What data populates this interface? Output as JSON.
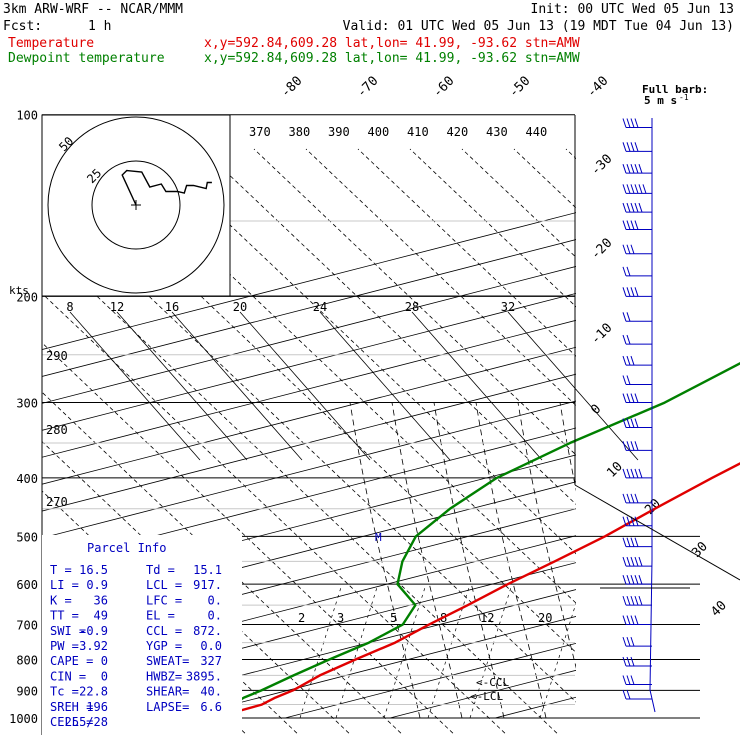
{
  "header": {
    "model": "3km ARW-WRF -- NCAR/MMM",
    "init": "Init: 00 UTC Wed 05 Jun 13",
    "fcst_label": "Fcst:",
    "fcst_value": "1 h",
    "valid": "Valid: 01 UTC Wed 05 Jun 13 (19 MDT Tue 04 Jun 13)",
    "temp_label": "Temperature",
    "dew_label": "Dewpoint temperature",
    "loc_info": "x,y=592.84,609.28   lat,lon= 41.99, -93.62  stn=AMW"
  },
  "colors": {
    "temperature": "#e00000",
    "dewpoint": "#008000",
    "wind": "#0000c0",
    "grid": "#000000"
  },
  "chart_data": {
    "type": "line",
    "pressure_ticks": [
      "100",
      "200",
      "300",
      "400",
      "500",
      "600",
      "700",
      "800",
      "900",
      "1000"
    ],
    "isotherm_labels": [
      "-80",
      "-70",
      "-60",
      "-50",
      "-40",
      "-30",
      "-20",
      "-10",
      "0",
      "10",
      "20",
      "30",
      "40"
    ],
    "theta_labels": [
      "370",
      "380",
      "390",
      "400",
      "410",
      "420",
      "430",
      "440"
    ],
    "theta_left_labels": [
      "290",
      "280",
      "270"
    ],
    "mixing_ratio_labels": [
      "2",
      "3",
      "5",
      "8",
      "12",
      "20"
    ],
    "hodo_labels": [
      "8",
      "12",
      "16",
      "20",
      "24",
      "28",
      "32"
    ],
    "hodo_ring_labels": [
      "25",
      "50"
    ],
    "kts_label": "kts",
    "barb_key": "Full barb:\n5 m s",
    "parcel_markers": [
      "<-CCL",
      "<-LCL"
    ],
    "temperature": {
      "name": "Temperature",
      "points": [
        [
          1000,
          23.0
        ],
        [
          975,
          23.0
        ],
        [
          950,
          22.8
        ],
        [
          925,
          21.5
        ],
        [
          900,
          20.5
        ],
        [
          850,
          17.5
        ],
        [
          800,
          15.0
        ],
        [
          750,
          12.5
        ],
        [
          700,
          9.0
        ],
        [
          650,
          5.5
        ],
        [
          600,
          1.5
        ],
        [
          550,
          -2.5
        ],
        [
          500,
          -7.0
        ],
        [
          450,
          -12.5
        ],
        [
          400,
          -18.5
        ],
        [
          350,
          -25.0
        ],
        [
          300,
          -33.0
        ],
        [
          250,
          -42.0
        ],
        [
          200,
          -54.0
        ],
        [
          180,
          -55.0
        ],
        [
          160,
          -56.0
        ],
        [
          140,
          -59.0
        ],
        [
          120,
          -61.0
        ],
        [
          100,
          -63.0
        ]
      ]
    },
    "dewpoint": {
      "name": "Dewpoint temperature",
      "points": [
        [
          1000,
          20.5
        ],
        [
          975,
          21.0
        ],
        [
          950,
          20.0
        ],
        [
          925,
          18.5
        ],
        [
          900,
          17.5
        ],
        [
          850,
          15.0
        ],
        [
          800,
          12.5
        ],
        [
          750,
          10.0
        ],
        [
          700,
          6.5
        ],
        [
          650,
          0.5
        ],
        [
          600,
          -9.0
        ],
        [
          550,
          -17.0
        ],
        [
          500,
          -25.0
        ],
        [
          450,
          -32.0
        ],
        [
          400,
          -39.0
        ],
        [
          350,
          -45.0
        ],
        [
          300,
          -51.0
        ],
        [
          250,
          -60.0
        ],
        [
          200,
          -70.0
        ],
        [
          180,
          -72.0
        ],
        [
          160,
          -73.0
        ],
        [
          140,
          -77.0
        ],
        [
          120,
          -82.0
        ],
        [
          100,
          -90.0
        ]
      ]
    },
    "winds": {
      "pressures": [
        105,
        115,
        125,
        135,
        145,
        155,
        170,
        185,
        200,
        220,
        240,
        260,
        280,
        300,
        330,
        360,
        400,
        440,
        480,
        520,
        560,
        600,
        650,
        700,
        760,
        820,
        880,
        930,
        970
      ],
      "speeds_ms": [
        20,
        20,
        25,
        30,
        25,
        20,
        15,
        10,
        20,
        10,
        10,
        15,
        10,
        20,
        20,
        20,
        25,
        20,
        20,
        20,
        25,
        25,
        25,
        20,
        15,
        15,
        15,
        10,
        10
      ]
    },
    "hodograph": [
      [
        0,
        0
      ],
      [
        -12,
        -20
      ],
      [
        -8,
        -23
      ],
      [
        5,
        -22
      ],
      [
        12,
        -12
      ],
      [
        22,
        -14
      ],
      [
        26,
        -9
      ],
      [
        36,
        -9
      ],
      [
        42,
        -8
      ],
      [
        44,
        -13
      ],
      [
        50,
        -13
      ],
      [
        61,
        -11
      ],
      [
        62,
        -15
      ],
      [
        66,
        -15
      ]
    ],
    "ylim": [
      1000,
      100
    ],
    "xlim": [
      -40,
      40
    ],
    "scale": "log-p"
  },
  "parcel": {
    "title": "Parcel Info",
    "rows": [
      [
        "T  =",
        "16.5",
        "Td =",
        "15.1"
      ],
      [
        "LI =",
        "0.9",
        "LCL =",
        "917."
      ],
      [
        "K  =",
        "36",
        "LFC =",
        "0."
      ],
      [
        "TT =",
        "49",
        "EL =",
        "0."
      ],
      [
        "SWI =",
        "-0.9",
        "CCL =",
        "872."
      ],
      [
        "PW =",
        "3.92",
        "YGP =",
        "0.0"
      ],
      [
        "CAPE =",
        "0",
        "SWEAT=",
        "327"
      ],
      [
        "CIN =",
        "0",
        "HWBZ=",
        "3895."
      ],
      [
        "Tc =",
        "22.8",
        "SHEAR=",
        "40."
      ],
      [
        "SREH =",
        "196",
        "LAPSE=",
        "6.6"
      ],
      [
        "CELL =",
        "255/28",
        "",
        ""
      ]
    ]
  }
}
